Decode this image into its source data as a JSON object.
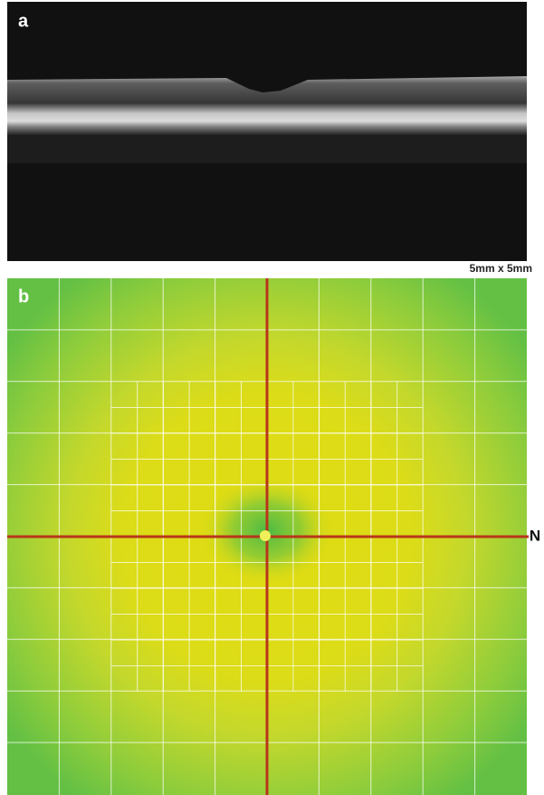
{
  "panels": [
    {
      "label": "a"
    },
    {
      "label": "b"
    }
  ],
  "scale": "5mm x 5mm",
  "direction": "N"
}
